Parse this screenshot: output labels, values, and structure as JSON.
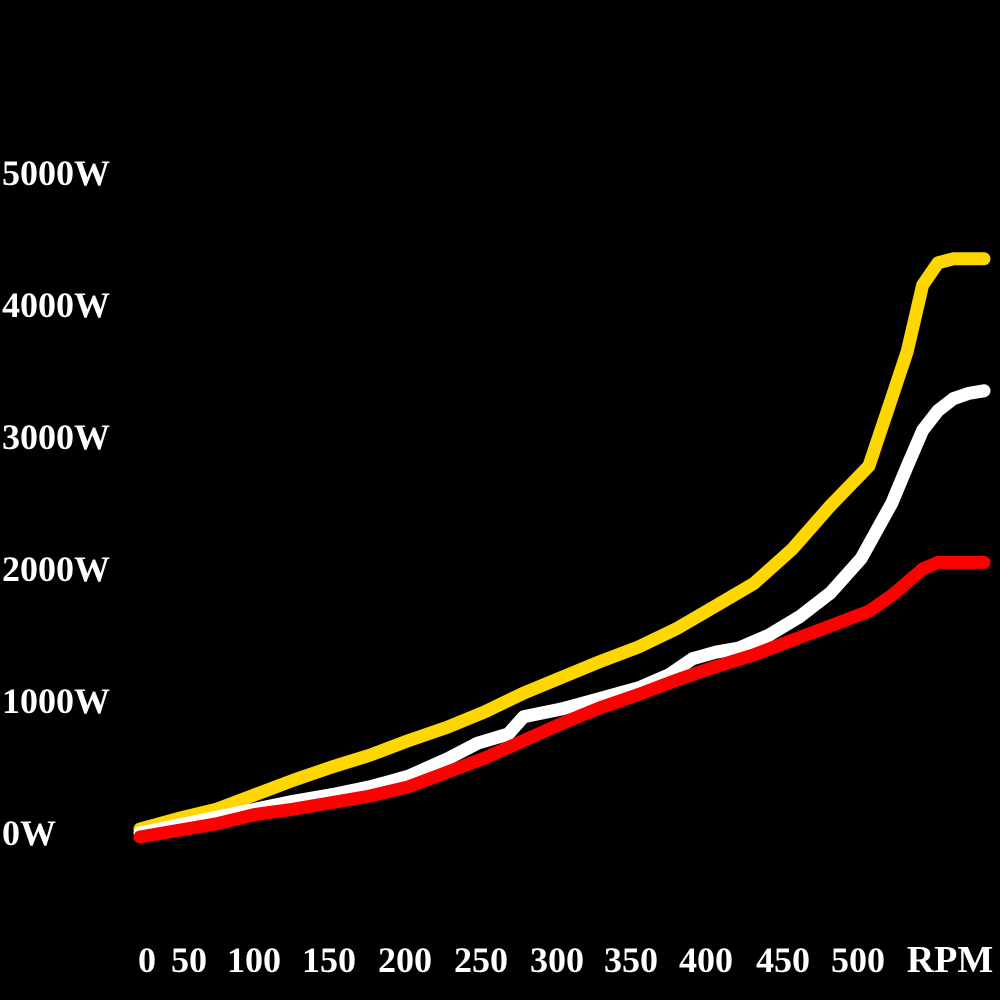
{
  "chart_data": {
    "type": "line",
    "title": "",
    "xlabel": "",
    "ylabel": "",
    "xlim": [
      0,
      550
    ],
    "ylim": [
      0,
      5000
    ],
    "grid": false,
    "legend": "none",
    "background": "#000000",
    "text_color": "#ffffff",
    "y_ticks": [
      {
        "value": 0,
        "label": "0W"
      },
      {
        "value": 1000,
        "label": "1000W"
      },
      {
        "value": 2000,
        "label": "2000W"
      },
      {
        "value": 3000,
        "label": "3000W"
      },
      {
        "value": 4000,
        "label": "4000W"
      },
      {
        "value": 5000,
        "label": "5000W"
      }
    ],
    "x_ticks": [
      {
        "value": 0,
        "label": "0"
      },
      {
        "value": 50,
        "label": "50"
      },
      {
        "value": 100,
        "label": "100"
      },
      {
        "value": 150,
        "label": "150"
      },
      {
        "value": 200,
        "label": "200"
      },
      {
        "value": 250,
        "label": "250"
      },
      {
        "value": 300,
        "label": "300"
      },
      {
        "value": 350,
        "label": "350"
      },
      {
        "value": 400,
        "label": "400"
      },
      {
        "value": 450,
        "label": "450"
      },
      {
        "value": 500,
        "label": "500"
      }
    ],
    "x_unit": "RPM",
    "series": [
      {
        "color": "#ffd700",
        "x": [
          0,
          25,
          50,
          75,
          100,
          125,
          150,
          175,
          200,
          225,
          250,
          275,
          300,
          325,
          350,
          375,
          400,
          425,
          450,
          475,
          490,
          500,
          510,
          520,
          530,
          550
        ],
        "y": [
          30,
          110,
          180,
          290,
          400,
          500,
          590,
          700,
          800,
          920,
          1060,
          1180,
          1300,
          1410,
          1550,
          1720,
          1890,
          2150,
          2480,
          2780,
          3300,
          3650,
          4150,
          4320,
          4350,
          4350
        ]
      },
      {
        "color": "#ffffff",
        "x": [
          0,
          25,
          50,
          75,
          100,
          125,
          150,
          175,
          200,
          220,
          240,
          250,
          275,
          300,
          325,
          345,
          360,
          375,
          390,
          410,
          430,
          450,
          470,
          490,
          500,
          510,
          520,
          530,
          540,
          550
        ],
        "y": [
          0,
          60,
          120,
          180,
          240,
          290,
          350,
          430,
          560,
          680,
          750,
          880,
          940,
          1020,
          1100,
          1200,
          1320,
          1370,
          1400,
          1500,
          1640,
          1820,
          2080,
          2500,
          2780,
          3050,
          3200,
          3290,
          3330,
          3350
        ]
      },
      {
        "color": "#ff0000",
        "x": [
          0,
          25,
          50,
          75,
          100,
          125,
          150,
          175,
          200,
          225,
          250,
          275,
          300,
          325,
          350,
          375,
          400,
          425,
          450,
          475,
          490,
          500,
          510,
          520,
          550
        ],
        "y": [
          -30,
          20,
          70,
          140,
          180,
          230,
          280,
          350,
          460,
          570,
          700,
          830,
          950,
          1050,
          1160,
          1260,
          1350,
          1460,
          1570,
          1680,
          1800,
          1900,
          2000,
          2050,
          2050
        ]
      }
    ]
  }
}
